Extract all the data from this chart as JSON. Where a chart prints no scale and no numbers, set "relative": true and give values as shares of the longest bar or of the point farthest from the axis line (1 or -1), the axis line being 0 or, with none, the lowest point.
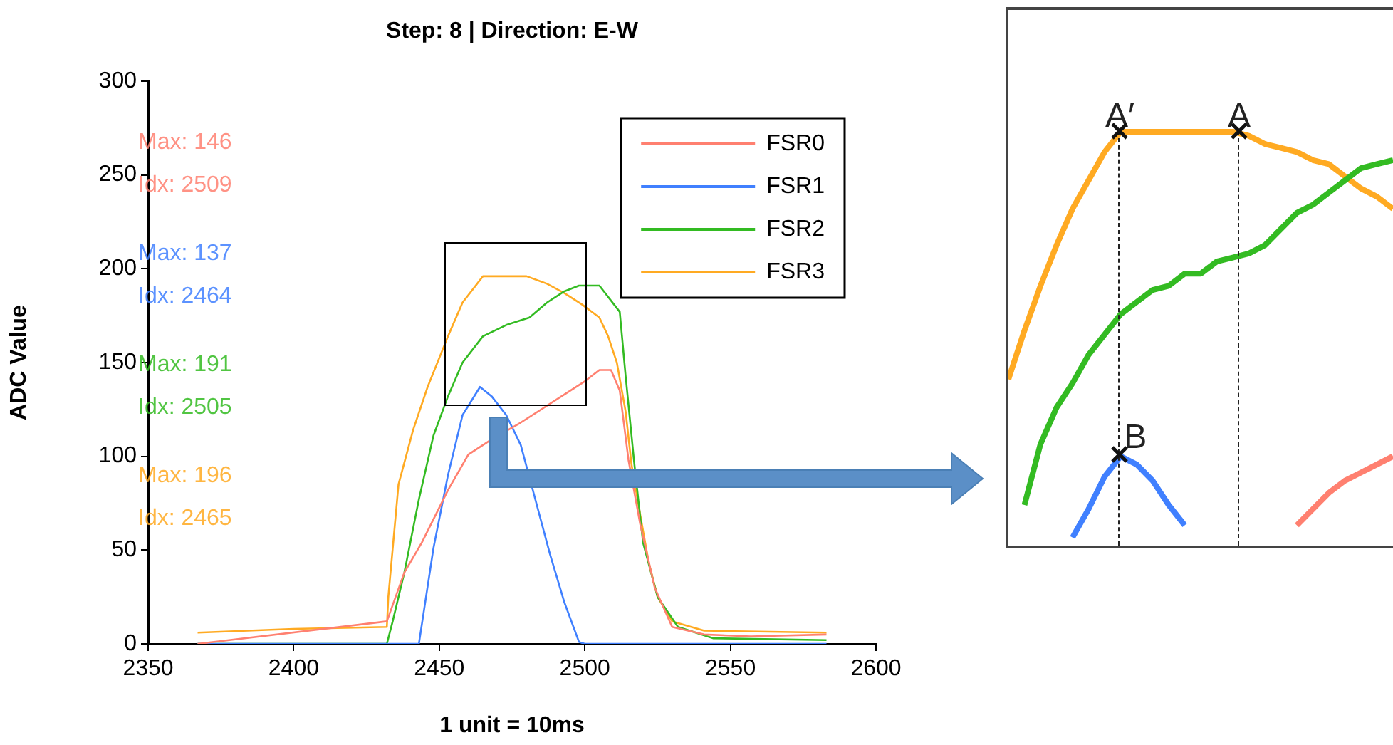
{
  "chart_data": [
    {
      "type": "line",
      "title": "Step: 8 | Direction: E-W",
      "xlabel": "1 unit = 10ms",
      "ylabel": "ADC Value",
      "xlim": [
        2350,
        2600
      ],
      "xticks": [
        2350,
        2400,
        2450,
        2500,
        2550,
        2600
      ],
      "ylim": [
        0,
        300
      ],
      "yticks": [
        0,
        50,
        100,
        150,
        200,
        250,
        300
      ],
      "legend": "top right",
      "series": [
        {
          "name": "FSR0",
          "color": "#ff8070",
          "x": [
            2367,
            2432,
            2438,
            2444,
            2453,
            2460,
            2468,
            2478,
            2490,
            2500,
            2505,
            2509,
            2512,
            2515,
            2519,
            2524,
            2530,
            2541,
            2557,
            2583
          ],
          "values": [
            0,
            12,
            38,
            54,
            82,
            101,
            109,
            118,
            130,
            140,
            146,
            146,
            135,
            98,
            64,
            30,
            9,
            5,
            4,
            5
          ]
        },
        {
          "name": "FSR1",
          "color": "#4080ff",
          "x": [
            2367,
            2443,
            2448,
            2453,
            2458,
            2464,
            2468,
            2473,
            2478,
            2483,
            2488,
            2493,
            2498,
            2500,
            2583
          ],
          "values": [
            0,
            0,
            51,
            90,
            122,
            137,
            132,
            122,
            106,
            77,
            48,
            22,
            1,
            0,
            0
          ]
        },
        {
          "name": "FSR2",
          "color": "#33bb22",
          "x": [
            2367,
            2432,
            2434,
            2438,
            2443,
            2448,
            2453,
            2458,
            2465,
            2473,
            2481,
            2487,
            2493,
            2498,
            2505,
            2512,
            2514,
            2517,
            2520,
            2525,
            2532,
            2544,
            2583
          ],
          "values": [
            0,
            0,
            12,
            38,
            77,
            111,
            132,
            150,
            164,
            170,
            174,
            182,
            188,
            191,
            191,
            177,
            143,
            96,
            54,
            25,
            9,
            3,
            2
          ]
        },
        {
          "name": "FSR3",
          "color": "#ffaa22",
          "x": [
            2367,
            2400,
            2432,
            2432.5,
            2436,
            2441,
            2446,
            2453,
            2458,
            2465,
            2480,
            2487,
            2493,
            2499,
            2505,
            2508,
            2511,
            2514,
            2516,
            2519,
            2522,
            2525,
            2530,
            2541,
            2583
          ],
          "values": [
            6,
            8,
            9,
            25,
            85,
            114,
            137,
            164,
            182,
            196,
            196,
            192,
            187,
            181,
            174,
            164,
            150,
            124,
            96,
            69,
            43,
            25,
            12,
            7,
            6
          ]
        }
      ],
      "annotations": [
        "Max: 146",
        "Idx: 2509",
        "Max: 137",
        "Idx: 2464",
        "Max: 191",
        "Idx: 2505",
        "Max: 196",
        "Idx: 2465"
      ]
    },
    {
      "type": "line",
      "relative": true,
      "categories": [
        null,
        null,
        null,
        null,
        null,
        null,
        null,
        null,
        null,
        null,
        null,
        null,
        null,
        null,
        null,
        null,
        null,
        null,
        null,
        null,
        null,
        null,
        null,
        null,
        null
      ],
      "series": [
        {
          "color": "#ff8070",
          "values": [
            null,
            null,
            null,
            null,
            null,
            null,
            null,
            null,
            null,
            null,
            null,
            null,
            null,
            null,
            null,
            null,
            null,
            null,
            0.03,
            0.07,
            0.11,
            0.14,
            0.16,
            0.18,
            0.2
          ]
        },
        {
          "color": "#4080ff",
          "values": [
            null,
            null,
            null,
            null,
            0,
            0.07,
            0.15,
            0.2,
            0.18,
            0.14,
            0.08,
            0.03,
            null,
            null,
            null,
            null,
            null,
            null,
            null,
            null,
            null,
            null,
            null,
            null,
            null
          ]
        },
        {
          "color": "#33bb22",
          "values": [
            null,
            0.08,
            0.23,
            0.32,
            0.38,
            0.45,
            0.5,
            0.55,
            0.58,
            0.61,
            0.62,
            0.65,
            0.65,
            0.68,
            0.69,
            0.7,
            0.72,
            0.76,
            0.8,
            0.82,
            0.85,
            0.88,
            0.91,
            0.92,
            0.93
          ]
        },
        {
          "color": "#ffaa22",
          "values": [
            0.39,
            0.51,
            0.62,
            0.72,
            0.81,
            0.88,
            0.95,
            1,
            1,
            1,
            1,
            1,
            1,
            1,
            1,
            0.99,
            0.97,
            0.96,
            0.95,
            0.93,
            0.92,
            0.89,
            0.86,
            0.84,
            0.81
          ]
        }
      ],
      "annotations": [
        "A′",
        "A",
        "B"
      ]
    }
  ]
}
